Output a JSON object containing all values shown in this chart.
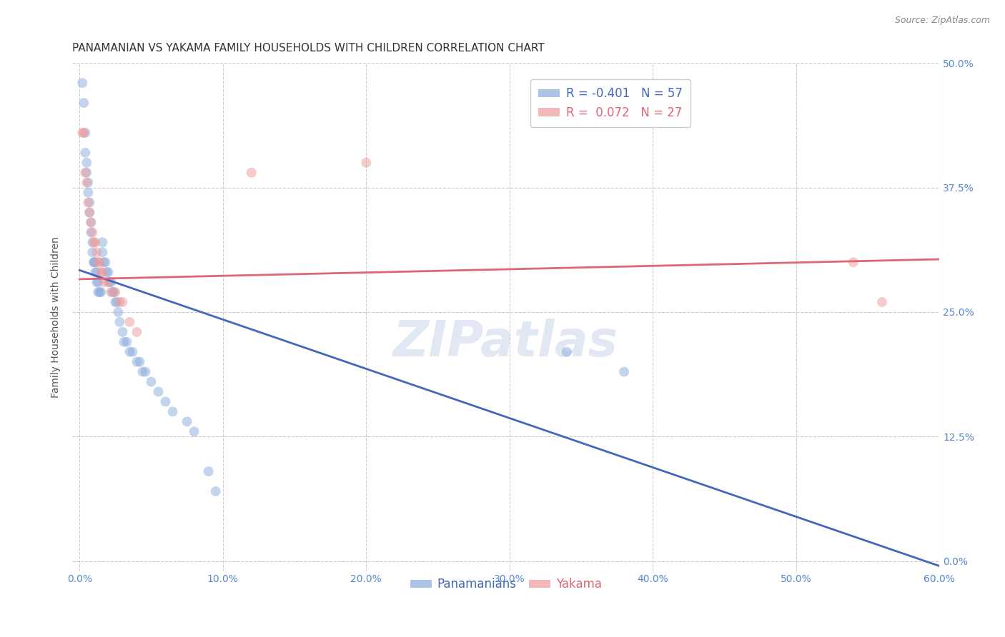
{
  "title": "PANAMANIAN VS YAKAMA FAMILY HOUSEHOLDS WITH CHILDREN CORRELATION CHART",
  "source": "Source: ZipAtlas.com",
  "ylabel": "Family Households with Children",
  "xlabel_ticks": [
    "0.0%",
    "10.0%",
    "20.0%",
    "30.0%",
    "40.0%",
    "50.0%",
    "60.0%"
  ],
  "xlabel_vals": [
    0.0,
    0.1,
    0.2,
    0.3,
    0.4,
    0.5,
    0.6
  ],
  "ylabel_ticks": [
    "0.0%",
    "12.5%",
    "25.0%",
    "37.5%",
    "50.0%"
  ],
  "ylabel_vals": [
    0.0,
    0.125,
    0.25,
    0.375,
    0.5
  ],
  "xlim": [
    -0.005,
    0.6
  ],
  "ylim": [
    -0.01,
    0.5
  ],
  "watermark": "ZIPatlas",
  "legend_blue_R": -0.401,
  "legend_blue_N": 57,
  "legend_pink_R": 0.072,
  "legend_pink_N": 27,
  "blue_color": "#88aadd",
  "pink_color": "#ee9999",
  "blue_line_color": "#4466bb",
  "pink_line_color": "#dd6677",
  "bottom_legend_blue": "Panamanians",
  "bottom_legend_pink": "Yakama",
  "blue_points_x": [
    0.002,
    0.003,
    0.004,
    0.004,
    0.005,
    0.005,
    0.006,
    0.006,
    0.007,
    0.007,
    0.008,
    0.008,
    0.009,
    0.009,
    0.01,
    0.01,
    0.011,
    0.011,
    0.012,
    0.012,
    0.013,
    0.013,
    0.014,
    0.015,
    0.016,
    0.016,
    0.017,
    0.018,
    0.019,
    0.02,
    0.021,
    0.022,
    0.023,
    0.024,
    0.025,
    0.026,
    0.027,
    0.028,
    0.03,
    0.031,
    0.033,
    0.035,
    0.037,
    0.04,
    0.042,
    0.044,
    0.046,
    0.05,
    0.055,
    0.06,
    0.065,
    0.075,
    0.08,
    0.09,
    0.095,
    0.34,
    0.38
  ],
  "blue_points_y": [
    0.48,
    0.46,
    0.43,
    0.41,
    0.4,
    0.39,
    0.38,
    0.37,
    0.36,
    0.35,
    0.34,
    0.33,
    0.32,
    0.31,
    0.3,
    0.3,
    0.3,
    0.29,
    0.29,
    0.28,
    0.28,
    0.27,
    0.27,
    0.27,
    0.32,
    0.31,
    0.3,
    0.3,
    0.29,
    0.29,
    0.28,
    0.28,
    0.27,
    0.27,
    0.26,
    0.26,
    0.25,
    0.24,
    0.23,
    0.22,
    0.22,
    0.21,
    0.21,
    0.2,
    0.2,
    0.19,
    0.19,
    0.18,
    0.17,
    0.16,
    0.15,
    0.14,
    0.13,
    0.09,
    0.07,
    0.21,
    0.19
  ],
  "pink_points_x": [
    0.002,
    0.003,
    0.004,
    0.005,
    0.006,
    0.007,
    0.008,
    0.009,
    0.01,
    0.011,
    0.012,
    0.013,
    0.014,
    0.015,
    0.016,
    0.017,
    0.02,
    0.022,
    0.025,
    0.028,
    0.03,
    0.035,
    0.04,
    0.12,
    0.2,
    0.54,
    0.56
  ],
  "pink_points_y": [
    0.43,
    0.43,
    0.39,
    0.38,
    0.36,
    0.35,
    0.34,
    0.33,
    0.32,
    0.32,
    0.31,
    0.3,
    0.3,
    0.29,
    0.29,
    0.28,
    0.28,
    0.27,
    0.27,
    0.26,
    0.26,
    0.24,
    0.23,
    0.39,
    0.4,
    0.3,
    0.26
  ],
  "blue_line_x": [
    0.0,
    0.6
  ],
  "blue_line_y": [
    0.292,
    -0.005
  ],
  "pink_line_x": [
    0.0,
    0.6
  ],
  "pink_line_y": [
    0.283,
    0.303
  ],
  "grid_color": "#cccccc",
  "bg_color": "#ffffff",
  "title_color": "#333333",
  "tick_color": "#5588cc",
  "title_fontsize": 11,
  "axis_label_fontsize": 10,
  "tick_fontsize": 10,
  "source_fontsize": 9
}
